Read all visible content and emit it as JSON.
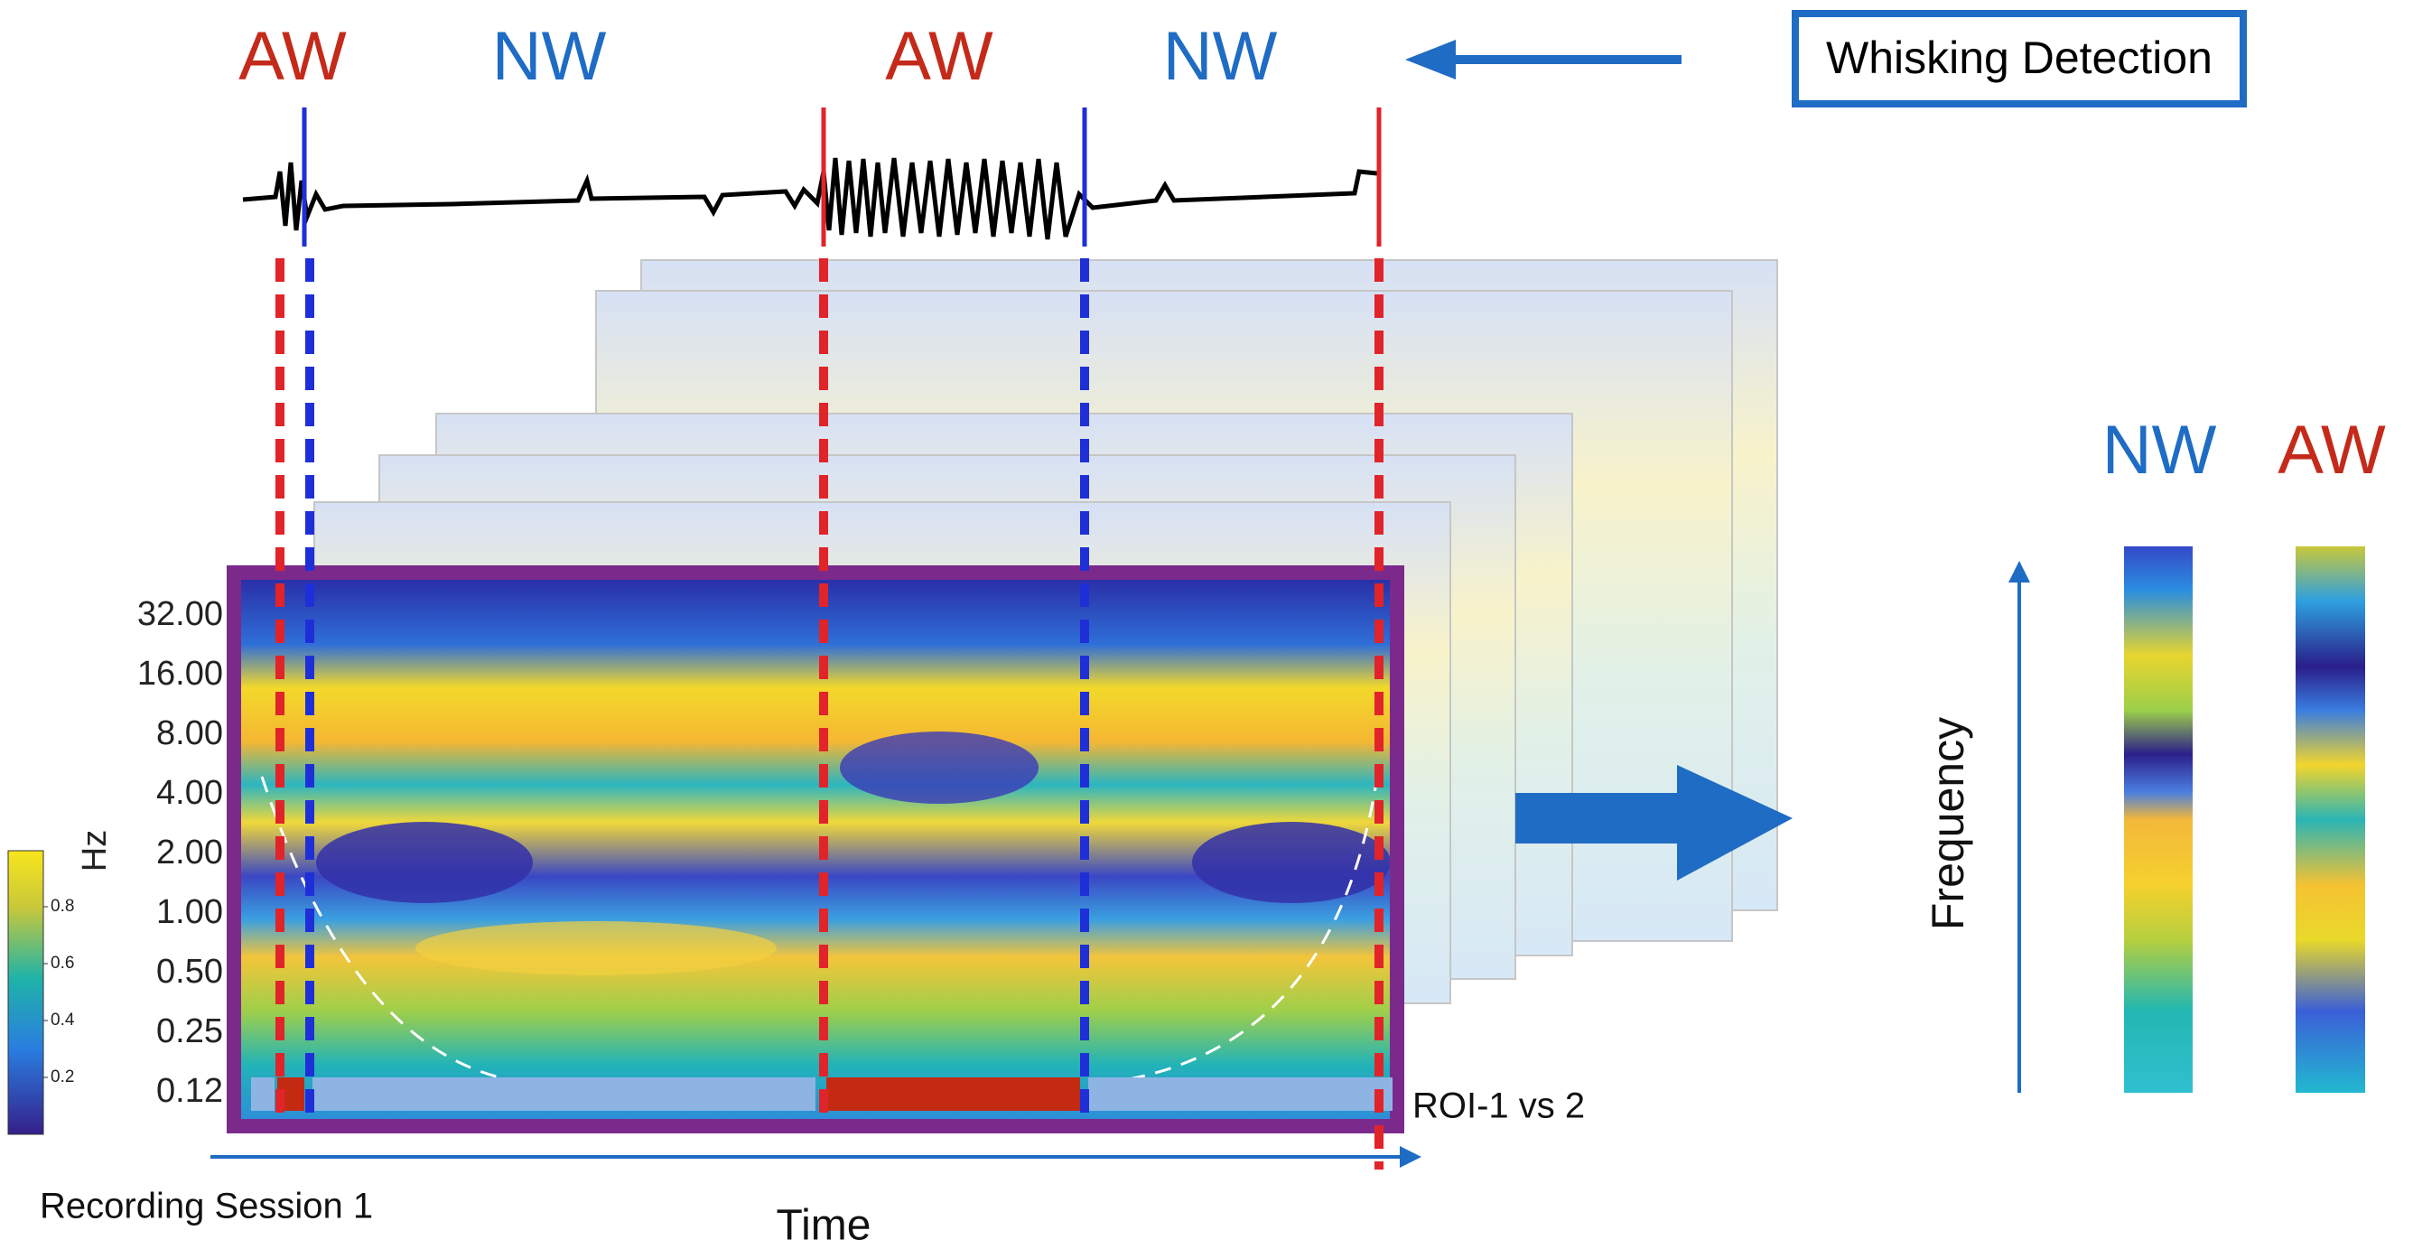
{
  "header": {
    "phases": [
      "AW",
      "NW",
      "AW",
      "NW"
    ],
    "button": "Whisking Detection"
  },
  "spectrogram": {
    "y_axis_label": "Hz",
    "y_ticks": [
      "32.00",
      "16.00",
      "8.00",
      "4.00",
      "2.00",
      "1.00",
      "0.50",
      "0.25",
      "0.12"
    ],
    "colorbar_ticks": [
      "0.8",
      "0.6",
      "0.4",
      "0.2"
    ],
    "roi_label": "ROI-1 vs 2",
    "session_label": "Recording Session 1",
    "x_axis_label": "Time"
  },
  "comparison": {
    "axis_label": "Frequency",
    "columns": [
      "NW",
      "AW"
    ]
  }
}
